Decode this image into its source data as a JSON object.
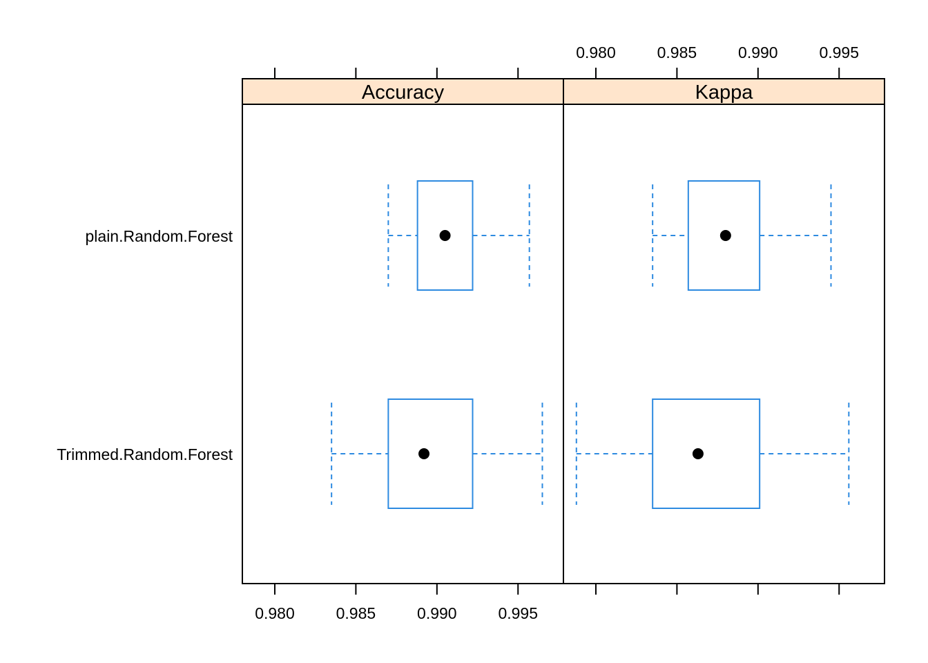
{
  "chart_data": {
    "type": "box",
    "panels": [
      {
        "name": "Accuracy",
        "xlim": [
          0.978,
          0.9978
        ],
        "ticks": [
          0.98,
          0.985,
          0.99,
          0.995
        ],
        "tick_labels": [
          "0.980",
          "0.985",
          "0.990",
          "0.995"
        ],
        "tick_labels_position": "bottom",
        "boxes": [
          {
            "category": "plain.Random.Forest",
            "min": 0.987,
            "q1": 0.9888,
            "median": 0.9905,
            "q3": 0.9922,
            "max": 0.9957
          },
          {
            "category": "Trimmed.Random.Forest",
            "min": 0.9835,
            "q1": 0.987,
            "median": 0.9892,
            "q3": 0.9922,
            "max": 0.9965
          }
        ]
      },
      {
        "name": "Kappa",
        "xlim": [
          0.978,
          0.9978
        ],
        "ticks": [
          0.98,
          0.985,
          0.99,
          0.995
        ],
        "tick_labels": [
          "0.980",
          "0.985",
          "0.990",
          "0.995"
        ],
        "tick_labels_position": "top",
        "boxes": [
          {
            "category": "plain.Random.Forest",
            "min": 0.9835,
            "q1": 0.9857,
            "median": 0.988,
            "q3": 0.9901,
            "max": 0.9945
          },
          {
            "category": "Trimmed.Random.Forest",
            "min": 0.9788,
            "q1": 0.9835,
            "median": 0.9863,
            "q3": 0.9901,
            "max": 0.9956
          }
        ]
      }
    ],
    "categories": [
      "plain.Random.Forest",
      "Trimmed.Random.Forest"
    ],
    "colors": {
      "box": "#2d8ae0",
      "median_dot": "#000000",
      "strip": "#ffe5cc",
      "frame": "#000000"
    },
    "grid": false,
    "legend": "none"
  }
}
